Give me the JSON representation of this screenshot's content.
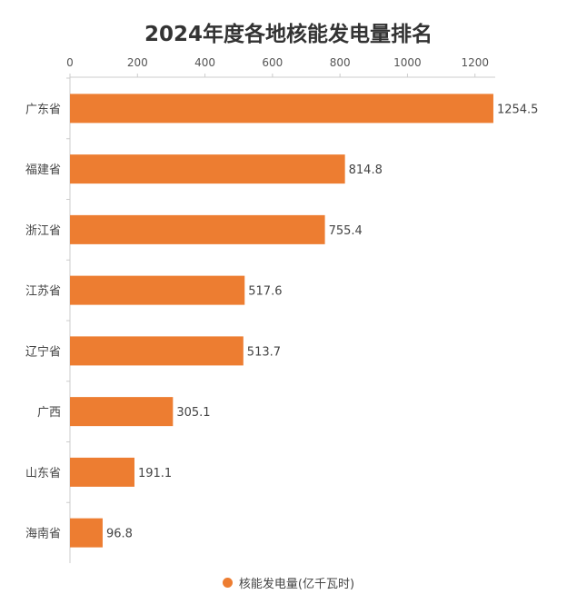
{
  "colors": {
    "bar": "#ED7D31",
    "axis": "#cccccc",
    "grid": "#e6e6e6"
  },
  "legend": {
    "label": "核能发电量(亿千瓦时)",
    "icon": "circle-icon"
  },
  "chart_data": {
    "type": "bar",
    "orientation": "horizontal",
    "title": "2024年度各地核能发电量排名",
    "categories": [
      "广东省",
      "福建省",
      "浙江省",
      "江苏省",
      "辽宁省",
      "广西",
      "山东省",
      "海南省"
    ],
    "series": [
      {
        "name": "核能发电量(亿千瓦时)",
        "values": [
          1254.5,
          814.8,
          755.4,
          517.6,
          513.7,
          305.1,
          191.1,
          96.8
        ]
      }
    ],
    "value_labels": [
      "1254.5",
      "814.8",
      "755.4",
      "517.6",
      "513.7",
      "305.1",
      "191.1",
      "96.8"
    ],
    "x_ticks": [
      "0",
      "200",
      "400",
      "600",
      "800",
      "1000",
      "1200"
    ],
    "xlim": [
      0,
      1260
    ],
    "x_axis_position": "top",
    "grid": false,
    "legend_position": "bottom-center"
  }
}
